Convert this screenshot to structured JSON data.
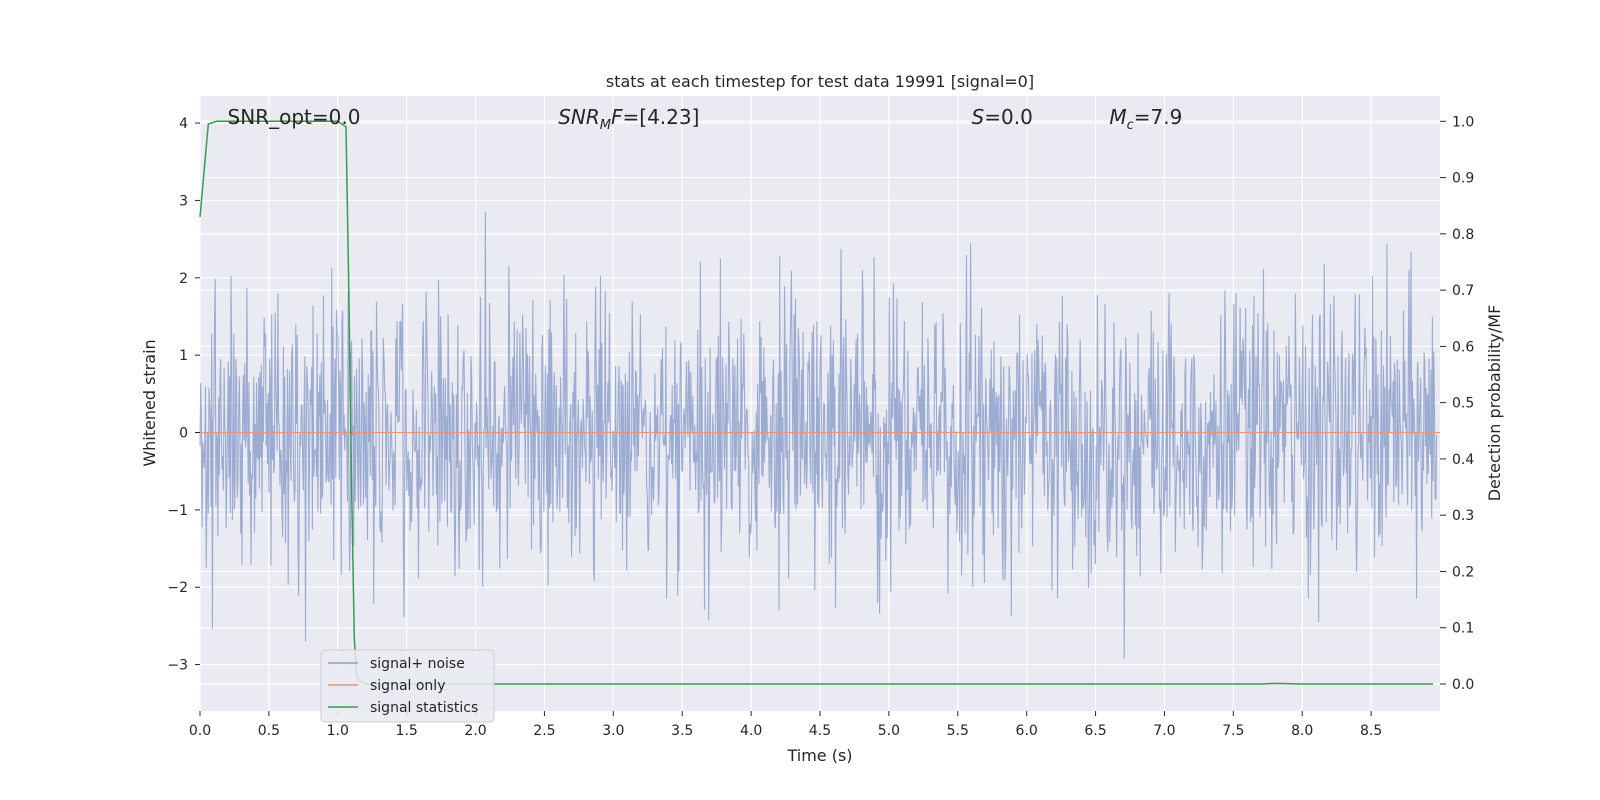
{
  "chart_data": {
    "type": "line",
    "title": "stats at each timestep for test data 19991 [signal=0]",
    "xlabel": "Time (s)",
    "ylabel": "Whitened strain",
    "y2label": "Detection probability/MF",
    "xlim": [
      0.0,
      9.0
    ],
    "ylim": [
      -3.6,
      4.35
    ],
    "y2lim": [
      -0.048,
      1.045
    ],
    "xticks": [
      0.0,
      0.5,
      1.0,
      1.5,
      2.0,
      2.5,
      3.0,
      3.5,
      4.0,
      4.5,
      5.0,
      5.5,
      6.0,
      6.5,
      7.0,
      7.5,
      8.0,
      8.5
    ],
    "xtick_labels": [
      "0.0",
      "0.5",
      "1.0",
      "1.5",
      "2.0",
      "2.5",
      "3.0",
      "3.5",
      "4.0",
      "4.5",
      "5.0",
      "5.5",
      "6.0",
      "6.5",
      "7.0",
      "7.5",
      "8.0",
      "8.5"
    ],
    "yticks": [
      -3,
      -2,
      -1,
      0,
      1,
      2,
      3,
      4
    ],
    "ytick_labels": [
      "−3",
      "−2",
      "−1",
      "0",
      "1",
      "2",
      "3",
      "4"
    ],
    "y2ticks": [
      0.0,
      0.1,
      0.2,
      0.3,
      0.4,
      0.5,
      0.6,
      0.7,
      0.8,
      0.9,
      1.0
    ],
    "y2tick_labels": [
      "0.0",
      "0.1",
      "0.2",
      "0.3",
      "0.4",
      "0.5",
      "0.6",
      "0.7",
      "0.8",
      "0.9",
      "1.0"
    ],
    "grid": true,
    "legend_position": "lower-left",
    "annotations": [
      {
        "key": "snr_opt",
        "text": "SNR_opt=0.0",
        "x": 0.2
      },
      {
        "key": "snr_mf",
        "base": "SNR",
        "sub": "M",
        "rest": "F=[4.23]",
        "x": 2.6,
        "italic": true
      },
      {
        "key": "s",
        "base": "S",
        "rest": "=0.0",
        "x": 5.6,
        "italic": true
      },
      {
        "key": "mc",
        "base": "M",
        "sub": "c",
        "rest": "=7.9",
        "x": 6.6,
        "italic": true
      }
    ],
    "series": [
      {
        "name": "signal+ noise",
        "axis": "left",
        "color": "#8da0cb",
        "description_kind": "noise",
        "sigma": 0.9,
        "samples": 1800,
        "t_range": [
          0.0,
          9.0
        ]
      },
      {
        "name": "signal only",
        "axis": "left",
        "color": "#e5967a",
        "x": [
          0.0,
          9.0
        ],
        "y": [
          0.0,
          0.0
        ]
      },
      {
        "name": "signal statistics",
        "axis": "right",
        "color": "#3a9a4f",
        "x": [
          0.0,
          0.06,
          0.12,
          0.5,
          1.0,
          1.06,
          1.08,
          1.1,
          1.12,
          1.14,
          1.2,
          1.5,
          2.0,
          3.0,
          4.0,
          5.0,
          6.0,
          7.0,
          7.7,
          7.8,
          8.0,
          8.95
        ],
        "y": [
          0.83,
          0.995,
          1.0,
          1.0,
          1.0,
          0.99,
          0.7,
          0.35,
          0.08,
          0.01,
          0.0,
          0.0,
          0.0,
          0.0,
          0.0,
          0.0,
          0.0,
          0.0,
          0.0,
          0.001,
          0.0,
          0.0
        ]
      }
    ]
  }
}
